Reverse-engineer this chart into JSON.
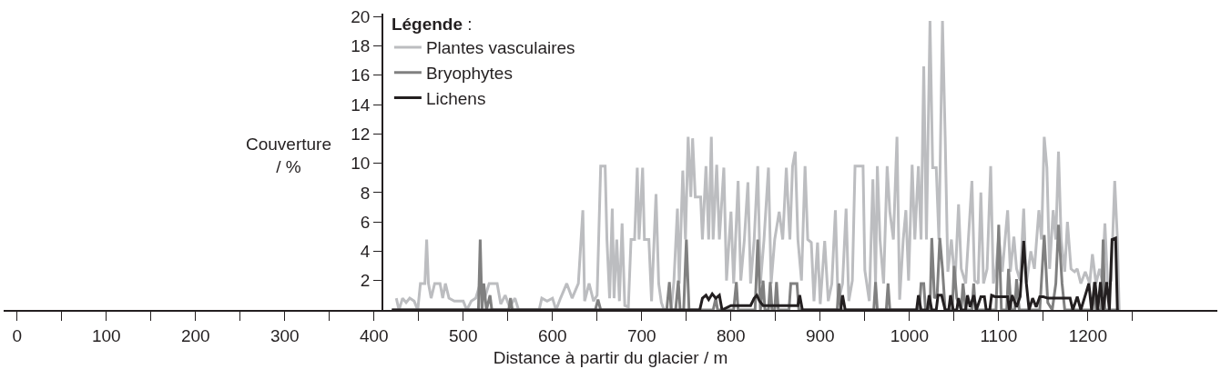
{
  "chart_data": {
    "type": "line",
    "xlabel": "Distance à partir du glacier / m",
    "ylabel": "Couverture\n/ %",
    "legend_title": "Légende :",
    "legend": "top left",
    "marker": "none",
    "line_style": "solid",
    "xlim": [
      -15,
      1345
    ],
    "ylim": [
      0,
      20.2
    ],
    "xticks": [
      0,
      {
        "value": 50,
        "label": null
      },
      100,
      {
        "value": 150,
        "label": null
      },
      200,
      {
        "value": 250,
        "label": null
      },
      300,
      {
        "value": 350,
        "label": null
      },
      400,
      {
        "value": 450,
        "label": null
      },
      500,
      {
        "value": 550,
        "label": null
      },
      600,
      {
        "value": 650,
        "label": null
      },
      700,
      {
        "value": 750,
        "label": null
      },
      800,
      {
        "value": 850,
        "label": null
      },
      900,
      {
        "value": 950,
        "label": null
      },
      1000,
      {
        "value": 1050,
        "label": null
      },
      1100,
      {
        "value": 1150,
        "label": null
      },
      1200,
      {
        "value": 1250,
        "label": null
      }
    ],
    "yticks": [
      2,
      4,
      6,
      8,
      10,
      12,
      14,
      16,
      18,
      20
    ],
    "series": [
      {
        "name": "Plantes vasculaires",
        "color": "#bcbdc0",
        "x": [
          425,
          428,
          432,
          436,
          440,
          445,
          449,
          452,
          457,
          459,
          461,
          464,
          468,
          474,
          477,
          480,
          484,
          490,
          500,
          504,
          509,
          514,
          519,
          524,
          529,
          538,
          542,
          547,
          552,
          558,
          562,
          585,
          588,
          594,
          600,
          604,
          609,
          616,
          622,
          629,
          634,
          636,
          641,
          646,
          650,
          654,
          659,
          661,
          664,
          667,
          669,
          672,
          675,
          678,
          681,
          685,
          688,
          692,
          695,
          697,
          701,
          703,
          708,
          711,
          716,
          719,
          722,
          725,
          733,
          736,
          740,
          742,
          746,
          749,
          752,
          755,
          757,
          760,
          766,
          768,
          772,
          775,
          778,
          780,
          784,
          787,
          792,
          795,
          800,
          803,
          808,
          811,
          815,
          819,
          822,
          826,
          830,
          833,
          837,
          842,
          845,
          849,
          854,
          858,
          862,
          866,
          869,
          872,
          875,
          879,
          883,
          886,
          890,
          893,
          897,
          900,
          905,
          909,
          913,
          917,
          920,
          925,
          929,
          932,
          936,
          939,
          948,
          950,
          955,
          959,
          962,
          964,
          967,
          971,
          975,
          978,
          982,
          986,
          989,
          993,
          996,
          999,
          1003,
          1006,
          1010,
          1013,
          1016,
          1019,
          1023,
          1026,
          1030,
          1033,
          1037,
          1040,
          1043,
          1047,
          1051,
          1055,
          1058,
          1063,
          1070,
          1073,
          1077,
          1080,
          1083,
          1087,
          1091,
          1094,
          1097,
          1100,
          1104,
          1110,
          1113,
          1117,
          1120,
          1124,
          1128,
          1131,
          1136,
          1140,
          1145,
          1148,
          1151,
          1154,
          1157,
          1161,
          1164,
          1167,
          1170,
          1174,
          1177,
          1181,
          1185,
          1188,
          1192,
          1197,
          1202,
          1205,
          1209,
          1213,
          1216,
          1219,
          1222,
          1226,
          1230,
          1233,
          1235
        ],
        "values": [
          0.8,
          0,
          0.8,
          0.5,
          0.8,
          0.6,
          0,
          1.8,
          1.8,
          4.8,
          1.8,
          0.8,
          1.8,
          1.8,
          0.8,
          1.8,
          0.8,
          0.6,
          0.6,
          0,
          0.6,
          0.8,
          1.8,
          0.8,
          1.8,
          1.8,
          0.4,
          1.0,
          0.2,
          0.8,
          0,
          0,
          0.8,
          0.6,
          0.8,
          0,
          0.8,
          1.8,
          0.8,
          1.8,
          6.8,
          0.6,
          1.8,
          0.6,
          1.0,
          9.8,
          9.8,
          4.8,
          0.8,
          6.9,
          0.8,
          4.8,
          0.6,
          5.9,
          0.3,
          0.2,
          4.8,
          4.8,
          9.7,
          4.8,
          9.7,
          4.8,
          4.8,
          0.6,
          7.9,
          1.8,
          0.5,
          0,
          0,
          1.9,
          6.9,
          1.8,
          9.5,
          4.8,
          11.8,
          7.7,
          11.7,
          7.7,
          7.7,
          4.8,
          9.8,
          4.8,
          11.8,
          4.8,
          9.9,
          4.8,
          9.7,
          2.0,
          6.7,
          1.8,
          8.8,
          2.0,
          4.8,
          8.7,
          1.8,
          4.8,
          9.8,
          1.8,
          4.8,
          9.7,
          1.8,
          4.8,
          6.7,
          4.8,
          9.7,
          4.8,
          9.8,
          10.8,
          4.8,
          2.0,
          9.8,
          4.8,
          4.6,
          0.6,
          4.6,
          0.4,
          4.7,
          0.6,
          1.8,
          6.8,
          0.5,
          1.8,
          6.9,
          0.6,
          2.0,
          9.8,
          9.8,
          2.7,
          0.6,
          8.9,
          1.8,
          9.8,
          4.8,
          1.8,
          9.8,
          6.7,
          4.8,
          11.8,
          0.7,
          4.8,
          6.8,
          2.0,
          9.9,
          4.8,
          9.8,
          4.8,
          16.6,
          4.8,
          19.7,
          9.7,
          9.7,
          4.8,
          19.7,
          11.8,
          2.6,
          4.8,
          1.8,
          7.2,
          2.8,
          1.8,
          8.8,
          2.0,
          1.8,
          8.0,
          1.8,
          2.8,
          9.8,
          1.8,
          2.8,
          5.0,
          2.6,
          6.8,
          2.6,
          5.0,
          2.8,
          2.0,
          6.9,
          1.8,
          4.0,
          2.8,
          6.8,
          4.8,
          11.8,
          9.7,
          2.8,
          6.8,
          4.8,
          10.8,
          4.8,
          2.6,
          6.0,
          2.8,
          2.6,
          2.8,
          1.8,
          2.6,
          1.8,
          3.8,
          1.8,
          2.8,
          2.0,
          5.9,
          1.8,
          2.0,
          8.8,
          4.8,
          0
        ]
      },
      {
        "name": "Bryophytes",
        "color": "#808080",
        "x": [
          420,
          517,
          519,
          521,
          523,
          526,
          530,
          532,
          551,
          553,
          555,
          648,
          651,
          654,
          728,
          731,
          733,
          738,
          741,
          743,
          747,
          750,
          753,
          780,
          783,
          785,
          803,
          806,
          808,
          827,
          830,
          833,
          836,
          838,
          842,
          844,
          846,
          849,
          851,
          853,
          865,
          867,
          874,
          876,
          919,
          921,
          923,
          960,
          962,
          964,
          974,
          976,
          978,
          1011,
          1013,
          1016,
          1018,
          1023,
          1025,
          1028,
          1031,
          1034,
          1037,
          1040,
          1048,
          1050,
          1053,
          1058,
          1060,
          1063,
          1070,
          1072,
          1074,
          1097,
          1100,
          1103,
          1109,
          1111,
          1114,
          1118,
          1120,
          1123,
          1146,
          1151,
          1155,
          1160,
          1164,
          1167,
          1171,
          1174,
          1205,
          1207,
          1209,
          1215,
          1217,
          1219,
          1235
        ],
        "values": [
          0,
          0,
          4.8,
          0,
          1.8,
          0,
          1.0,
          0,
          0,
          0.8,
          0,
          0,
          0.7,
          0,
          0,
          1.9,
          0,
          0,
          2.0,
          0,
          0,
          4.8,
          0,
          0,
          0.8,
          0,
          0,
          1.9,
          0,
          0,
          4.8,
          0,
          2.0,
          0,
          0,
          1.9,
          0,
          0,
          1.9,
          0,
          0,
          1.8,
          1.8,
          0,
          0,
          1.8,
          0,
          0,
          1.9,
          0,
          0,
          1.8,
          0,
          0,
          1.8,
          1.8,
          0,
          0,
          4.9,
          0.8,
          1.0,
          4.9,
          2.8,
          0,
          0,
          3.0,
          0.8,
          0,
          1.8,
          0,
          0,
          1.8,
          0,
          0,
          5.8,
          0,
          0,
          2.8,
          0,
          0,
          2.1,
          0,
          0,
          5.1,
          0.5,
          0,
          1.8,
          5.8,
          1.8,
          0,
          0,
          1.9,
          0,
          0,
          4.8,
          0,
          0
        ]
      },
      {
        "name": "Lichens",
        "color": "#231f20",
        "x": [
          420,
          765,
          768,
          772,
          775,
          779,
          783,
          787,
          790,
          800,
          822,
          826,
          829,
          832,
          836,
          875,
          877,
          880,
          923,
          925,
          928,
          1008,
          1010,
          1013,
          1020,
          1022,
          1025,
          1030,
          1032,
          1036,
          1040,
          1044,
          1046,
          1049,
          1053,
          1055,
          1058,
          1063,
          1065,
          1068,
          1072,
          1075,
          1080,
          1084,
          1086,
          1090,
          1092,
          1096,
          1110,
          1112,
          1115,
          1120,
          1124,
          1128,
          1131,
          1134,
          1138,
          1142,
          1146,
          1150,
          1155,
          1180,
          1183,
          1188,
          1192,
          1197,
          1201,
          1204,
          1208,
          1211,
          1214,
          1217,
          1221,
          1224,
          1227,
          1231,
          1233
        ],
        "values": [
          0,
          0,
          0.8,
          1.0,
          0.7,
          1.1,
          0.8,
          1.0,
          0,
          0.3,
          0.3,
          0.8,
          1.0,
          0.6,
          0.3,
          0.3,
          1.0,
          0,
          0,
          1.0,
          0,
          0,
          1.0,
          0,
          0,
          1.0,
          0,
          0,
          1.0,
          1.0,
          0,
          0,
          1.0,
          0,
          0,
          0.8,
          0,
          0,
          1.0,
          0.2,
          1.0,
          0,
          0.9,
          0.9,
          0,
          0,
          1.0,
          0.9,
          0.9,
          0,
          1.0,
          0.2,
          0.9,
          4.7,
          1.8,
          0,
          0.8,
          0.2,
          0.9,
          0.9,
          0.8,
          0.8,
          0,
          0.9,
          0,
          1.0,
          1.8,
          0,
          1.9,
          0,
          1.9,
          0,
          1.9,
          0,
          4.8,
          4.9,
          0
        ]
      }
    ]
  }
}
